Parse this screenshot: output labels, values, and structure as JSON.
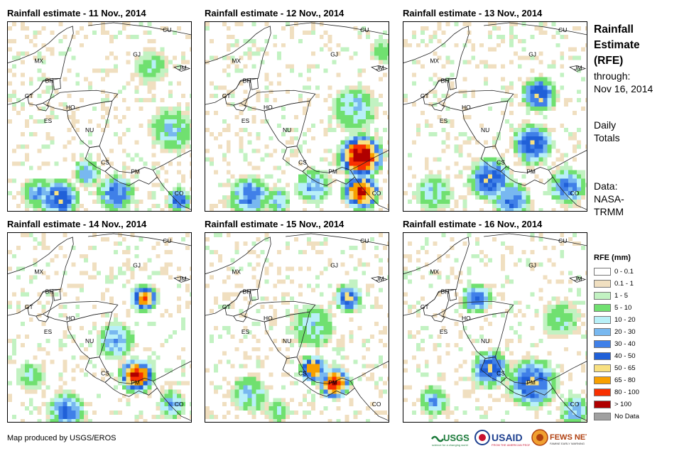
{
  "panels": [
    {
      "title": "Rainfall estimate - 11 Nov., 2014"
    },
    {
      "title": "Rainfall estimate - 12 Nov., 2014"
    },
    {
      "title": "Rainfall estimate - 13 Nov., 2014"
    },
    {
      "title": "Rainfall estimate - 14 Nov., 2014"
    },
    {
      "title": "Rainfall estimate - 15 Nov., 2014"
    },
    {
      "title": "Rainfall estimate - 16 Nov., 2014"
    }
  ],
  "country_labels": [
    "CU",
    "MX",
    "GJ",
    "JM",
    "BH",
    "GT",
    "HO",
    "ES",
    "NU",
    "CS",
    "PM",
    "CO"
  ],
  "sidebar": {
    "title_lines": [
      "Rainfall",
      "Estimate",
      "(RFE)"
    ],
    "through_label": "through:",
    "through_date": "Nov 16, 2014",
    "totals_lines": [
      "Daily",
      "Totals"
    ],
    "data_lines": [
      "Data:",
      "NASA-",
      "TRMM"
    ]
  },
  "legend": {
    "title": "RFE (mm)",
    "items": [
      {
        "label": "0 - 0.1",
        "color": "#ffffff"
      },
      {
        "label": "0.1 - 1",
        "color": "#f0dfc0"
      },
      {
        "label": "1 - 5",
        "color": "#c2f2c2"
      },
      {
        "label": "5 - 10",
        "color": "#70e070"
      },
      {
        "label": "10 - 20",
        "color": "#b8f0f8"
      },
      {
        "label": "20 - 30",
        "color": "#78b8f0"
      },
      {
        "label": "30 - 40",
        "color": "#4080e8"
      },
      {
        "label": "40 - 50",
        "color": "#2060d8"
      },
      {
        "label": "50 - 65",
        "color": "#f8e080"
      },
      {
        "label": "65 - 80",
        "color": "#f8a000"
      },
      {
        "label": "80 - 100",
        "color": "#f83000"
      },
      {
        "label": "> 100",
        "color": "#b00000"
      },
      {
        "label": "No Data",
        "color": "#a0a0a0"
      }
    ]
  },
  "credit": "Map produced by USGS/EROS",
  "logos": [
    "USGS",
    "USAID",
    "FEWS NET"
  ]
}
